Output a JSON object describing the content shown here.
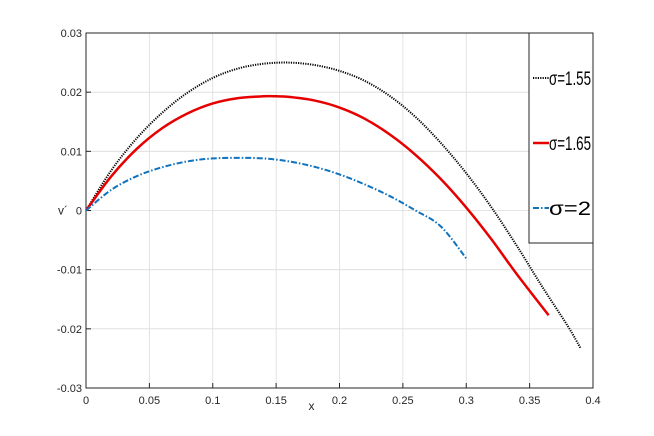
{
  "chart_data": {
    "type": "line",
    "title": "",
    "xlabel": "x",
    "ylabel": "v´",
    "xlim": [
      0,
      0.4
    ],
    "ylim": [
      -0.03,
      0.03
    ],
    "x_ticks": [
      0,
      0.05,
      0.1,
      0.15,
      0.2,
      0.25,
      0.3,
      0.35,
      0.4
    ],
    "x_tick_labels": [
      "0",
      "0.05",
      "0.1",
      "0.15",
      "0.2",
      "0.25",
      "0.3",
      "0.35",
      "0.4"
    ],
    "y_ticks": [
      -0.03,
      -0.02,
      -0.01,
      0,
      0.01,
      0.02,
      0.03
    ],
    "y_tick_labels": [
      "-0.03",
      "-0.02",
      "-0.01",
      "0",
      "0.01",
      "0.02",
      "0.03"
    ],
    "grid": true,
    "legend_position": "top-right",
    "series": [
      {
        "name": "σ=1.55",
        "color": "#000000",
        "style": "dotted",
        "x": [
          0,
          0.02,
          0.04,
          0.06,
          0.08,
          0.1,
          0.12,
          0.14,
          0.16,
          0.18,
          0.2,
          0.22,
          0.24,
          0.26,
          0.28,
          0.3,
          0.32,
          0.34,
          0.36,
          0.38,
          0.39
        ],
        "y": [
          0,
          0.0068,
          0.0122,
          0.0165,
          0.0199,
          0.0224,
          0.024,
          0.0248,
          0.025,
          0.0246,
          0.0236,
          0.0219,
          0.0193,
          0.0158,
          0.0114,
          0.0063,
          0.0005,
          -0.006,
          -0.0129,
          -0.0195,
          -0.0232
        ]
      },
      {
        "name": "σ=1.65",
        "color": "#e60000",
        "style": "solid",
        "x": [
          0,
          0.02,
          0.04,
          0.06,
          0.08,
          0.1,
          0.12,
          0.14,
          0.15,
          0.16,
          0.18,
          0.2,
          0.22,
          0.24,
          0.26,
          0.28,
          0.3,
          0.32,
          0.34,
          0.365
        ],
        "y": [
          0,
          0.0058,
          0.0104,
          0.0139,
          0.0164,
          0.0181,
          0.019,
          0.0193,
          0.0193,
          0.0192,
          0.0186,
          0.0174,
          0.0155,
          0.0128,
          0.0094,
          0.0053,
          0.0005,
          -0.0049,
          -0.0108,
          -0.0177
        ]
      },
      {
        "name": "σ=2",
        "color": "#0f72bd",
        "style": "dashdot",
        "x": [
          0,
          0.02,
          0.04,
          0.06,
          0.08,
          0.1,
          0.12,
          0.14,
          0.16,
          0.18,
          0.2,
          0.22,
          0.24,
          0.26,
          0.28,
          0.3
        ],
        "y": [
          0,
          0.0035,
          0.0058,
          0.0073,
          0.0083,
          0.0088,
          0.0089,
          0.0088,
          0.0083,
          0.0074,
          0.0061,
          0.0044,
          0.0024,
          0.0,
          -0.0027,
          -0.0081
        ]
      }
    ]
  }
}
